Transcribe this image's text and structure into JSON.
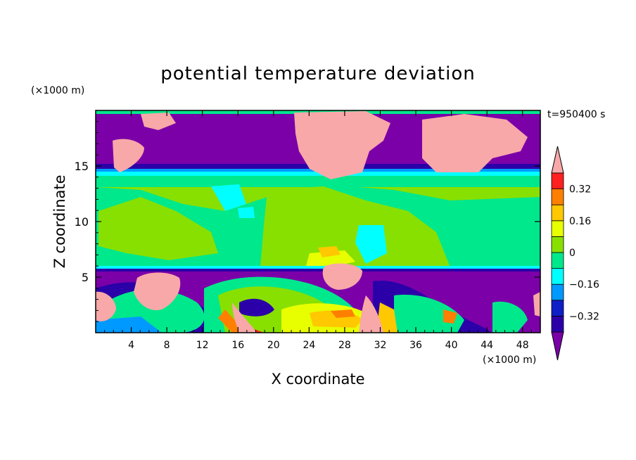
{
  "chart_data": {
    "type": "heatmap",
    "title": "potential temperature deviation",
    "xlabel": "X coordinate",
    "ylabel": "Z coordinate",
    "x_units": "(×1000 m)",
    "y_units": "(×1000 m)",
    "time_label": "t=950400 s",
    "xlim": [
      0,
      50
    ],
    "ylim": [
      0,
      20
    ],
    "x_ticks": [
      4,
      8,
      12,
      16,
      20,
      24,
      28,
      32,
      36,
      40,
      44,
      48
    ],
    "y_ticks": [
      5,
      10,
      15
    ],
    "colorbar": {
      "levels": [
        -0.4,
        -0.32,
        -0.24,
        -0.16,
        -0.08,
        0,
        0.08,
        0.16,
        0.24,
        0.32,
        0.4
      ],
      "tick_labels": [
        "0.32",
        "0.16",
        "0",
        "−0.16",
        "−0.32"
      ],
      "tick_values": [
        0.32,
        0.16,
        0,
        -0.16,
        -0.32
      ],
      "colors": [
        "#7b00a8",
        "#2b00a8",
        "#0e1fc8",
        "#0099ff",
        "#00ffff",
        "#00e88c",
        "#88e000",
        "#e8ff00",
        "#ffc800",
        "#ff8000",
        "#ff2020",
        "#f8a8a8"
      ],
      "extend": "both"
    }
  }
}
